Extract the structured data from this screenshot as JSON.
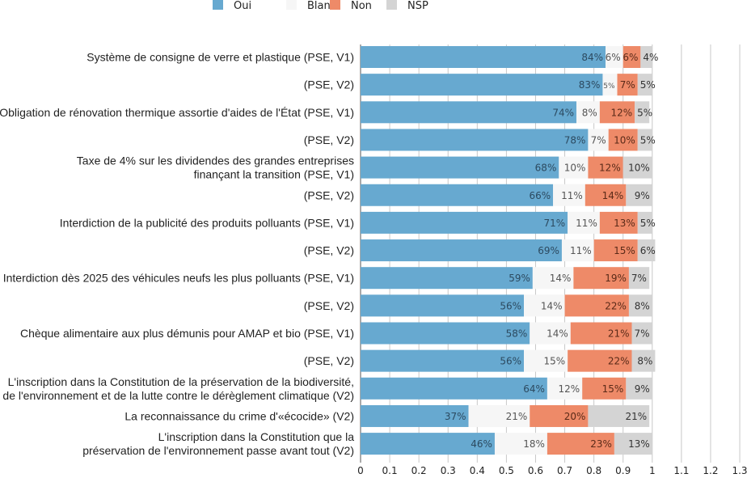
{
  "chart_data": {
    "type": "bar",
    "orientation": "horizontal",
    "stacked": true,
    "xlim": [
      0,
      1.3
    ],
    "x_ticks": [
      "0",
      "0.1",
      "0.2",
      "0.3",
      "0.4",
      "0.5",
      "0.6",
      "0.7",
      "0.8",
      "0.9",
      "1",
      "1.1",
      "1.2",
      "1.3"
    ],
    "grid": true,
    "legend_position": "top",
    "categories": [
      [
        "Système de consigne de verre et plastique (PSE, V1)"
      ],
      [
        "(PSE, V2)"
      ],
      [
        "Obligation de rénovation thermique assortie d'aides de l'État (PSE, V1)"
      ],
      [
        "(PSE, V2)"
      ],
      [
        "Taxe de 4% sur les dividendes des grandes entreprises",
        "finançant la transition (PSE, V1)"
      ],
      [
        "(PSE, V2)"
      ],
      [
        "Interdiction de la publicité des produits polluants (PSE, V1)"
      ],
      [
        "(PSE, V2)"
      ],
      [
        "Interdiction dès 2025 des véhicules neufs les plus polluants (PSE, V1)"
      ],
      [
        "(PSE, V2)"
      ],
      [
        "Chèque alimentaire aux plus démunis pour AMAP et bio (PSE, V1)"
      ],
      [
        "(PSE, V2)"
      ],
      [
        "L'inscription dans la Constitution de la préservation de la biodiversité,",
        "de l'environnement et de la lutte contre le dérèglement climatique (V2)"
      ],
      [
        "La reconnaissance du crime d'«écocide» (V2)"
      ],
      [
        "L'inscription dans la Constitution que la",
        "préservation de l'environnement passe avant tout (V2)"
      ]
    ],
    "series": [
      {
        "name": "Oui",
        "color": "#67a9d0",
        "text_color": "#2c4a60",
        "values": [
          0.84,
          0.83,
          0.74,
          0.78,
          0.68,
          0.66,
          0.71,
          0.69,
          0.59,
          0.56,
          0.58,
          0.56,
          0.64,
          0.37,
          0.46
        ],
        "labels": [
          "84%",
          "83%",
          "74%",
          "78%",
          "68%",
          "66%",
          "71%",
          "69%",
          "59%",
          "56%",
          "58%",
          "56%",
          "64%",
          "37%",
          "46%"
        ]
      },
      {
        "name": "Blanc",
        "color": "#f6f6f6",
        "text_color": "#555555",
        "values": [
          0.06,
          0.05,
          0.08,
          0.07,
          0.1,
          0.11,
          0.11,
          0.11,
          0.14,
          0.14,
          0.14,
          0.15,
          0.12,
          0.21,
          0.18
        ],
        "labels": [
          "6%",
          "5%",
          "8%",
          "7%",
          "10%",
          "11%",
          "11%",
          "11%",
          "14%",
          "14%",
          "14%",
          "15%",
          "12%",
          "21%",
          "18%"
        ]
      },
      {
        "name": "Non",
        "color": "#ee8a68",
        "text_color": "#5a2a18",
        "values": [
          0.06,
          0.07,
          0.12,
          0.1,
          0.12,
          0.14,
          0.13,
          0.15,
          0.19,
          0.22,
          0.21,
          0.22,
          0.15,
          0.2,
          0.23
        ],
        "labels": [
          "6%",
          "7%",
          "12%",
          "10%",
          "12%",
          "14%",
          "13%",
          "15%",
          "19%",
          "22%",
          "21%",
          "22%",
          "15%",
          "20%",
          "23%"
        ]
      },
      {
        "name": "NSP",
        "color": "#d4d4d4",
        "text_color": "#333333",
        "values": [
          0.04,
          0.05,
          0.05,
          0.05,
          0.1,
          0.09,
          0.05,
          0.06,
          0.07,
          0.08,
          0.07,
          0.08,
          0.09,
          0.21,
          0.13
        ],
        "labels": [
          "4%",
          "5%",
          "5%",
          "5%",
          "10%",
          "9%",
          "5%",
          "6%",
          "7%",
          "8%",
          "7%",
          "8%",
          "9%",
          "21%",
          "13%"
        ]
      }
    ]
  }
}
